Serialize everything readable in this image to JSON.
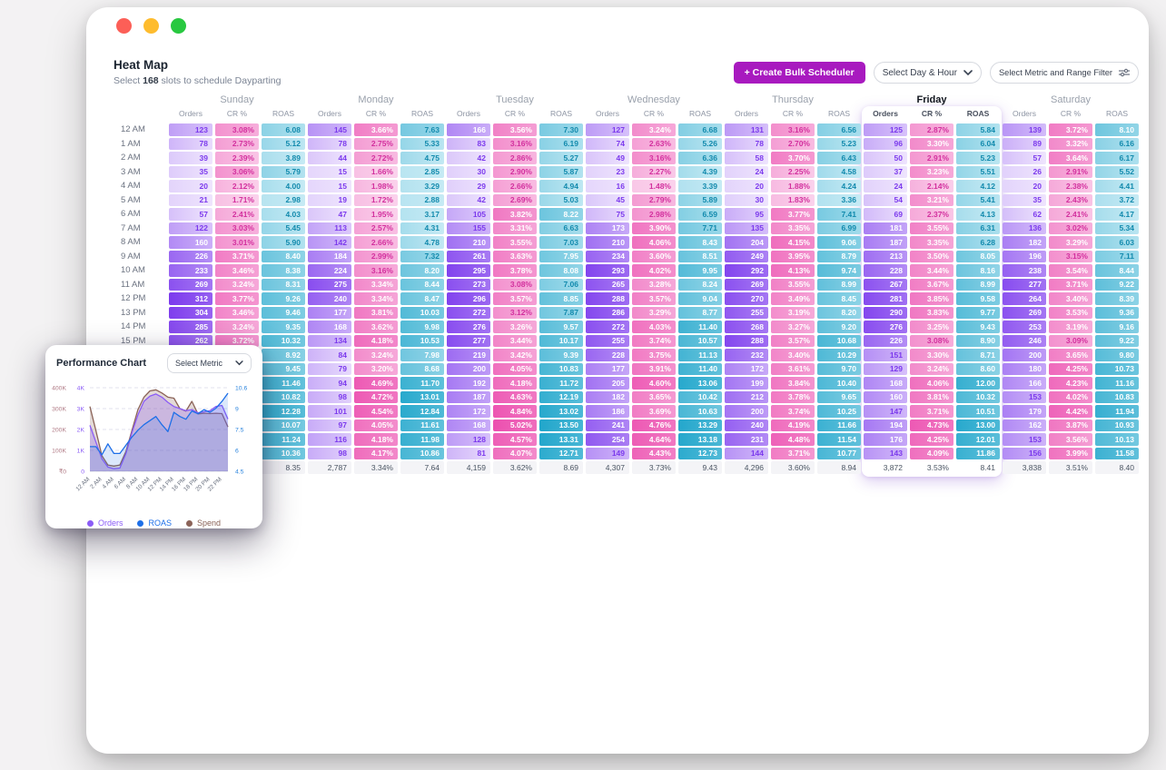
{
  "window": {
    "traffic_lights": [
      "#fc5f57",
      "#febc2e",
      "#28c840"
    ]
  },
  "header": {
    "title": "Heat Map",
    "subtitle_prefix": "Select ",
    "subtitle_count": "168",
    "subtitle_suffix": " slots to schedule Dayparting"
  },
  "toolbar": {
    "create_button": "+ Create Bulk Scheduler",
    "accent_color": "#a81abf",
    "day_hour_dropdown": "Select Day & Hour",
    "metric_filter_dropdown": "Select Metric and Range Filter"
  },
  "heatmap": {
    "metrics": [
      "Orders",
      "CR %",
      "ROAS"
    ],
    "hours": [
      "12 AM",
      "1 AM",
      "2 AM",
      "3 AM",
      "4 AM",
      "5 AM",
      "6 AM",
      "7 AM",
      "8 AM",
      "9 AM",
      "10 AM",
      "11 AM",
      "12 PM",
      "13 PM",
      "14 PM",
      "15 PM",
      "",
      "",
      "",
      "",
      "",
      "",
      "",
      ""
    ],
    "scales": {
      "orders": {
        "light": "#eee4fd",
        "dark": "#7c3aed",
        "text_light": "#7c3aed"
      },
      "cr": {
        "light": "#fad2ec",
        "dark": "#ec4faf",
        "text_light": "#d3309e"
      },
      "roas": {
        "light": "#c6eaf4",
        "dark": "#21a6cb",
        "text_light": "#128aad"
      }
    },
    "days": [
      {
        "name": "Sunday",
        "selected": false,
        "rows": [
          [
            123,
            "3.08%",
            "6.08"
          ],
          [
            78,
            "2.73%",
            "5.12"
          ],
          [
            39,
            "2.39%",
            "3.89"
          ],
          [
            35,
            "3.06%",
            "5.79"
          ],
          [
            20,
            "2.12%",
            "4.00"
          ],
          [
            21,
            "1.71%",
            "2.98"
          ],
          [
            57,
            "2.41%",
            "4.03"
          ],
          [
            122,
            "3.03%",
            "5.45"
          ],
          [
            160,
            "3.01%",
            "5.90"
          ],
          [
            226,
            "3.71%",
            "8.40"
          ],
          [
            233,
            "3.46%",
            "8.38"
          ],
          [
            269,
            "3.24%",
            "8.31"
          ],
          [
            312,
            "3.77%",
            "9.26"
          ],
          [
            304,
            "3.46%",
            "9.46"
          ],
          [
            285,
            "3.24%",
            "9.35"
          ],
          [
            262,
            "3.72%",
            "10.32"
          ],
          [
            null,
            "",
            "8.92"
          ],
          [
            null,
            "",
            "9.45"
          ],
          [
            null,
            "",
            "11.46"
          ],
          [
            null,
            "",
            "10.82"
          ],
          [
            null,
            "",
            "12.28"
          ],
          [
            null,
            "",
            "10.07"
          ],
          [
            null,
            "",
            "11.24"
          ],
          [
            null,
            "",
            "10.36"
          ]
        ],
        "totals": [
          "",
          "",
          "8.35"
        ]
      },
      {
        "name": "Monday",
        "selected": false,
        "rows": [
          [
            145,
            "3.66%",
            "7.63"
          ],
          [
            78,
            "2.75%",
            "5.33"
          ],
          [
            44,
            "2.72%",
            "4.75"
          ],
          [
            15,
            "1.66%",
            "2.85"
          ],
          [
            15,
            "1.98%",
            "3.29"
          ],
          [
            19,
            "1.72%",
            "2.88"
          ],
          [
            47,
            "1.95%",
            "3.17"
          ],
          [
            113,
            "2.57%",
            "4.31"
          ],
          [
            142,
            "2.66%",
            "4.78"
          ],
          [
            184,
            "2.99%",
            "7.32"
          ],
          [
            224,
            "3.16%",
            "8.20"
          ],
          [
            275,
            "3.34%",
            "8.44"
          ],
          [
            240,
            "3.34%",
            "8.47"
          ],
          [
            177,
            "3.81%",
            "10.03"
          ],
          [
            168,
            "3.62%",
            "9.98"
          ],
          [
            134,
            "4.18%",
            "10.53"
          ],
          [
            84,
            "3.24%",
            "7.98"
          ],
          [
            79,
            "3.20%",
            "8.68"
          ],
          [
            94,
            "4.69%",
            "11.70"
          ],
          [
            98,
            "4.72%",
            "13.01"
          ],
          [
            101,
            "4.54%",
            "12.84"
          ],
          [
            97,
            "4.05%",
            "11.61"
          ],
          [
            116,
            "4.18%",
            "11.98"
          ],
          [
            98,
            "4.17%",
            "10.86"
          ]
        ],
        "totals": [
          "2,787",
          "3.34%",
          "7.64"
        ]
      },
      {
        "name": "Tuesday",
        "selected": false,
        "rows": [
          [
            166,
            "3.56%",
            "7.30"
          ],
          [
            83,
            "3.16%",
            "6.19"
          ],
          [
            42,
            "2.86%",
            "5.27"
          ],
          [
            30,
            "2.90%",
            "5.87"
          ],
          [
            29,
            "2.66%",
            "4.94"
          ],
          [
            42,
            "2.69%",
            "5.03"
          ],
          [
            105,
            "3.82%",
            "8.22"
          ],
          [
            155,
            "3.31%",
            "6.63"
          ],
          [
            210,
            "3.55%",
            "7.03"
          ],
          [
            261,
            "3.63%",
            "7.95"
          ],
          [
            295,
            "3.78%",
            "8.08"
          ],
          [
            273,
            "3.08%",
            "7.06"
          ],
          [
            296,
            "3.57%",
            "8.85"
          ],
          [
            272,
            "3.12%",
            "7.87"
          ],
          [
            276,
            "3.26%",
            "9.57"
          ],
          [
            277,
            "3.44%",
            "10.17"
          ],
          [
            219,
            "3.42%",
            "9.39"
          ],
          [
            200,
            "4.05%",
            "10.83"
          ],
          [
            192,
            "4.18%",
            "11.72"
          ],
          [
            187,
            "4.63%",
            "12.19"
          ],
          [
            172,
            "4.84%",
            "13.02"
          ],
          [
            168,
            "5.02%",
            "13.50"
          ],
          [
            128,
            "4.57%",
            "13.31"
          ],
          [
            81,
            "4.07%",
            "12.71"
          ]
        ],
        "totals": [
          "4,159",
          "3.62%",
          "8.69"
        ]
      },
      {
        "name": "Wednesday",
        "selected": false,
        "rows": [
          [
            127,
            "3.24%",
            "6.68"
          ],
          [
            74,
            "2.63%",
            "5.26"
          ],
          [
            49,
            "3.16%",
            "6.36"
          ],
          [
            23,
            "2.27%",
            "4.39"
          ],
          [
            16,
            "1.48%",
            "3.39"
          ],
          [
            45,
            "2.79%",
            "5.89"
          ],
          [
            75,
            "2.98%",
            "6.59"
          ],
          [
            173,
            "3.90%",
            "7.71"
          ],
          [
            210,
            "4.06%",
            "8.43"
          ],
          [
            234,
            "3.60%",
            "8.51"
          ],
          [
            293,
            "4.02%",
            "9.95"
          ],
          [
            265,
            "3.28%",
            "8.24"
          ],
          [
            288,
            "3.57%",
            "9.04"
          ],
          [
            286,
            "3.29%",
            "8.77"
          ],
          [
            272,
            "4.03%",
            "11.40"
          ],
          [
            255,
            "3.74%",
            "10.57"
          ],
          [
            228,
            "3.75%",
            "11.13"
          ],
          [
            177,
            "3.91%",
            "11.40"
          ],
          [
            205,
            "4.60%",
            "13.06"
          ],
          [
            182,
            "3.65%",
            "10.42"
          ],
          [
            186,
            "3.69%",
            "10.63"
          ],
          [
            241,
            "4.76%",
            "13.29"
          ],
          [
            254,
            "4.64%",
            "13.18"
          ],
          [
            149,
            "4.43%",
            "12.73"
          ]
        ],
        "totals": [
          "4,307",
          "3.73%",
          "9.43"
        ]
      },
      {
        "name": "Thursday",
        "selected": false,
        "rows": [
          [
            131,
            "3.16%",
            "6.56"
          ],
          [
            78,
            "2.70%",
            "5.23"
          ],
          [
            58,
            "3.70%",
            "6.43"
          ],
          [
            24,
            "2.25%",
            "4.58"
          ],
          [
            20,
            "1.88%",
            "4.24"
          ],
          [
            30,
            "1.83%",
            "3.36"
          ],
          [
            95,
            "3.77%",
            "7.41"
          ],
          [
            135,
            "3.35%",
            "6.99"
          ],
          [
            204,
            "4.15%",
            "9.06"
          ],
          [
            249,
            "3.95%",
            "8.79"
          ],
          [
            292,
            "4.13%",
            "9.74"
          ],
          [
            269,
            "3.55%",
            "8.99"
          ],
          [
            270,
            "3.49%",
            "8.45"
          ],
          [
            255,
            "3.19%",
            "8.20"
          ],
          [
            268,
            "3.27%",
            "9.20"
          ],
          [
            288,
            "3.57%",
            "10.68"
          ],
          [
            232,
            "3.40%",
            "10.29"
          ],
          [
            172,
            "3.61%",
            "9.70"
          ],
          [
            199,
            "3.84%",
            "10.40"
          ],
          [
            212,
            "3.78%",
            "9.65"
          ],
          [
            200,
            "3.74%",
            "10.25"
          ],
          [
            240,
            "4.19%",
            "11.66"
          ],
          [
            231,
            "4.48%",
            "11.54"
          ],
          [
            144,
            "3.71%",
            "10.77"
          ]
        ],
        "totals": [
          "4,296",
          "3.60%",
          "8.94"
        ]
      },
      {
        "name": "Friday",
        "selected": true,
        "rows": [
          [
            125,
            "2.87%",
            "5.84"
          ],
          [
            96,
            "3.30%",
            "6.04"
          ],
          [
            50,
            "2.91%",
            "5.23"
          ],
          [
            37,
            "3.23%",
            "5.51"
          ],
          [
            24,
            "2.14%",
            "4.12"
          ],
          [
            54,
            "3.21%",
            "5.41"
          ],
          [
            69,
            "2.37%",
            "4.13"
          ],
          [
            181,
            "3.55%",
            "6.31"
          ],
          [
            187,
            "3.35%",
            "6.28"
          ],
          [
            213,
            "3.50%",
            "8.05"
          ],
          [
            228,
            "3.44%",
            "8.16"
          ],
          [
            267,
            "3.67%",
            "8.99"
          ],
          [
            281,
            "3.85%",
            "9.58"
          ],
          [
            290,
            "3.83%",
            "9.77"
          ],
          [
            276,
            "3.25%",
            "9.43"
          ],
          [
            226,
            "3.08%",
            "8.90"
          ],
          [
            151,
            "3.30%",
            "8.71"
          ],
          [
            129,
            "3.24%",
            "8.60"
          ],
          [
            168,
            "4.06%",
            "12.00"
          ],
          [
            160,
            "3.81%",
            "10.32"
          ],
          [
            147,
            "3.71%",
            "10.51"
          ],
          [
            194,
            "4.73%",
            "13.00"
          ],
          [
            176,
            "4.25%",
            "12.01"
          ],
          [
            143,
            "4.09%",
            "11.86"
          ]
        ],
        "totals": [
          "3,872",
          "3.53%",
          "8.41"
        ]
      },
      {
        "name": "Saturday",
        "selected": false,
        "rows": [
          [
            139,
            "3.72%",
            "8.10"
          ],
          [
            89,
            "3.32%",
            "6.16"
          ],
          [
            57,
            "3.64%",
            "6.17"
          ],
          [
            26,
            "2.91%",
            "5.52"
          ],
          [
            20,
            "2.38%",
            "4.41"
          ],
          [
            35,
            "2.43%",
            "3.72"
          ],
          [
            62,
            "2.41%",
            "4.17"
          ],
          [
            136,
            "3.02%",
            "5.34"
          ],
          [
            182,
            "3.29%",
            "6.03"
          ],
          [
            196,
            "3.15%",
            "7.11"
          ],
          [
            238,
            "3.54%",
            "8.44"
          ],
          [
            277,
            "3.71%",
            "9.22"
          ],
          [
            264,
            "3.40%",
            "8.39"
          ],
          [
            269,
            "3.53%",
            "9.36"
          ],
          [
            253,
            "3.19%",
            "9.16"
          ],
          [
            246,
            "3.09%",
            "9.22"
          ],
          [
            200,
            "3.65%",
            "9.80"
          ],
          [
            180,
            "4.25%",
            "10.73"
          ],
          [
            166,
            "4.23%",
            "11.16"
          ],
          [
            153,
            "4.02%",
            "10.83"
          ],
          [
            179,
            "4.42%",
            "11.94"
          ],
          [
            162,
            "3.87%",
            "10.93"
          ],
          [
            153,
            "3.56%",
            "10.13"
          ],
          [
            156,
            "3.99%",
            "11.58"
          ]
        ],
        "totals": [
          "3,838",
          "3.51%",
          "8.40"
        ]
      }
    ]
  },
  "chart_card": {
    "title": "Performance Chart",
    "metric_dropdown": "Select Metric",
    "chart_data": {
      "type": "line",
      "x_hours": [
        0,
        1,
        2,
        3,
        4,
        5,
        6,
        7,
        8,
        9,
        10,
        11,
        12,
        13,
        14,
        15,
        16,
        17,
        18,
        19,
        20,
        21,
        22,
        23
      ],
      "x_tick_labels": [
        "12 AM",
        "2 AM",
        "4 AM",
        "6 AM",
        "8 AM",
        "10 AM",
        "12 PM",
        "14 PM",
        "16 PM",
        "18 PM",
        "20 PM",
        "22 PM"
      ],
      "spend_axis_ticks": [
        "₹400K",
        "₹300K",
        "₹200K",
        "₹100K",
        "₹0"
      ],
      "orders_axis_ticks": [
        "4K",
        "3K",
        "2K",
        "1K",
        "0"
      ],
      "roas_axis_ticks": [
        "10.6",
        "9",
        "7.5",
        "6",
        "4.5"
      ],
      "orders_ylim": [
        0,
        4000
      ],
      "spend_ylim": [
        0,
        400000
      ],
      "roas_ylim": [
        4.5,
        10.6
      ],
      "grid": "dashed",
      "legend_position": "bottom",
      "series": [
        {
          "name": "Orders",
          "color": "#8b5cf6",
          "fill_opacity": 0.28,
          "axis": "orders",
          "values": [
            2200,
            1400,
            600,
            200,
            120,
            150,
            850,
            1850,
            2700,
            3350,
            3600,
            3700,
            3550,
            3300,
            3100,
            3000,
            2900,
            2950,
            2800,
            2850,
            2900,
            3100,
            3150,
            2500
          ]
        },
        {
          "name": "ROAS",
          "color": "#1d6fe8",
          "fill_opacity": 0.16,
          "axis": "roas",
          "values": [
            6.3,
            6.3,
            5.7,
            6.5,
            5.8,
            5.8,
            6.4,
            7.0,
            7.5,
            7.9,
            8.2,
            8.5,
            7.9,
            7.4,
            8.8,
            8.5,
            8.3,
            8.9,
            8.7,
            9.0,
            8.8,
            9.1,
            9.6,
            10.2
          ]
        },
        {
          "name": "Spend",
          "color": "#8b6358",
          "fill_opacity": 0.24,
          "axis": "spend",
          "values": [
            310000,
            195000,
            75000,
            30000,
            25000,
            30000,
            95000,
            195000,
            295000,
            355000,
            385000,
            390000,
            375000,
            355000,
            350000,
            300000,
            288000,
            335000,
            275000,
            278000,
            276000,
            278000,
            276000,
            212000
          ]
        }
      ],
      "tick_colors": {
        "spend": "#b07a85",
        "orders": "#8b5cf6",
        "roas": "#2e86de",
        "x": "#6b7280"
      }
    }
  }
}
